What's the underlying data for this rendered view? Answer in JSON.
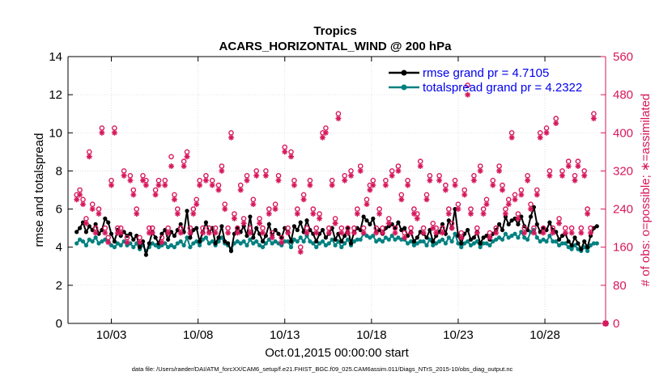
{
  "chart_data": {
    "type": "line",
    "title": "Tropics",
    "subtitle": "ACARS_HORIZONTAL_WIND @ 200 hPa",
    "xlabel": "Oct.01,2015 00:00:00 start",
    "ylabel_left": "rmse and totalspread",
    "ylabel_right": "# of obs: o=possible; ∗=assimilated",
    "footnote": "data file: /Users/raeder/DAI/ATM_forcXX/CAM6_setup/f.e21.FHIST_BGC.f09_025.CAM6assim.011/Diags_NTrS_2015-10/obs_diag_output.nc",
    "xlim_days": [
      0.5,
      31.5
    ],
    "x_ticks": [
      {
        "day": 3,
        "label": "10/03"
      },
      {
        "day": 8,
        "label": "10/08"
      },
      {
        "day": 13,
        "label": "10/13"
      },
      {
        "day": 18,
        "label": "10/18"
      },
      {
        "day": 23,
        "label": "10/23"
      },
      {
        "day": 28,
        "label": "10/28"
      }
    ],
    "ylim_left": [
      0,
      14
    ],
    "left_ticks": [
      "0",
      "2",
      "4",
      "6",
      "8",
      "10",
      "12",
      "14"
    ],
    "ylim_right": [
      0,
      560
    ],
    "right_ticks": [
      "0",
      "80",
      "160",
      "240",
      "320",
      "400",
      "480",
      "560"
    ],
    "legend_placement": "top-right",
    "colors": {
      "rmse": "#000000",
      "spread": "#008080",
      "obs": "#d6175b"
    },
    "series": [
      {
        "name": "rmse grand pr = 4.7105",
        "marker": "dot",
        "values": [
          4.8,
          5.0,
          5.3,
          4.8,
          5.1,
          4.9,
          5.2,
          4.7,
          4.9,
          5.5,
          5.3,
          4.7,
          4.3,
          4.9,
          4.6,
          4.8,
          4.6,
          4.7,
          4.4,
          4.6,
          4.0,
          4.3,
          3.6,
          4.2,
          4.8,
          4.5,
          4.2,
          4.7,
          4.9,
          4.4,
          4.8,
          4.6,
          4.9,
          5.2,
          4.8,
          5.9,
          4.5,
          4.9,
          5.0,
          4.3,
          4.8,
          5.3,
          4.8,
          5.0,
          4.2,
          4.5,
          5.1,
          4.3,
          4.2,
          3.8,
          4.7,
          5.0,
          4.8,
          5.1,
          4.6,
          5.6,
          4.5,
          5.0,
          4.7,
          4.3,
          4.6,
          5.2,
          4.6,
          4.9,
          4.7,
          4.5,
          5.0,
          4.8,
          4.3,
          5.1,
          4.9,
          5.3,
          4.8,
          5.4,
          4.9,
          4.7,
          4.3,
          4.7,
          4.9,
          4.5,
          4.7,
          5.0,
          4.4,
          4.7,
          4.3,
          4.6,
          5.0,
          4.2,
          4.8,
          5.0,
          4.9,
          5.6,
          5.4,
          5.2,
          5.5,
          4.8,
          4.9,
          4.7,
          5.0,
          5.1,
          5.2,
          5.0,
          5.3,
          4.9,
          5.0,
          4.6,
          4.8,
          4.3,
          4.5,
          4.8,
          4.7,
          4.5,
          4.9,
          4.3,
          4.6,
          4.8,
          5.2,
          4.7,
          5.4,
          5.0,
          6.0,
          4.6,
          4.2,
          4.7,
          4.9,
          4.4,
          4.5,
          4.8,
          4.2,
          4.5,
          4.6,
          4.4,
          4.7,
          4.9,
          5.2,
          4.9,
          5.6,
          5.2,
          5.4,
          5.5,
          5.2,
          5.6,
          5.1,
          4.9,
          5.6,
          6.1,
          5.2,
          4.8,
          5.0,
          4.9,
          5.3,
          4.9,
          4.8,
          4.4,
          4.6,
          4.7,
          4.3,
          4.1,
          4.5,
          4.2,
          3.9,
          4.3,
          4.0,
          4.6,
          5.0,
          5.1
        ]
      },
      {
        "name": "totalspread grand pr = 4.2322",
        "marker": "dot",
        "values": [
          4.2,
          4.4,
          4.3,
          4.1,
          4.4,
          4.3,
          4.5,
          4.2,
          4.3,
          4.4,
          4.3,
          4.1,
          4.0,
          4.2,
          4.1,
          4.3,
          4.1,
          4.2,
          4.0,
          4.2,
          3.9,
          4.1,
          3.8,
          4.0,
          4.2,
          4.1,
          4.0,
          4.1,
          4.2,
          4.0,
          4.1,
          4.0,
          4.2,
          4.3,
          4.1,
          4.5,
          4.0,
          4.2,
          4.3,
          4.1,
          4.4,
          4.5,
          4.2,
          4.3,
          4.1,
          4.3,
          4.5,
          4.2,
          4.1,
          3.9,
          4.2,
          4.3,
          4.2,
          4.3,
          4.1,
          4.4,
          4.2,
          4.3,
          4.1,
          4.0,
          4.2,
          4.4,
          4.2,
          4.3,
          4.2,
          4.1,
          4.3,
          4.3,
          4.0,
          4.4,
          4.3,
          4.5,
          4.3,
          4.6,
          4.3,
          4.2,
          4.0,
          4.2,
          4.3,
          4.1,
          4.2,
          4.4,
          4.1,
          4.3,
          4.0,
          4.2,
          4.4,
          4.1,
          4.3,
          4.4,
          4.4,
          4.7,
          4.6,
          4.5,
          4.6,
          4.3,
          4.4,
          4.3,
          4.5,
          4.4,
          4.6,
          4.4,
          4.5,
          4.4,
          4.4,
          4.2,
          4.3,
          4.1,
          4.2,
          4.3,
          4.3,
          4.1,
          4.4,
          4.1,
          4.2,
          4.3,
          4.4,
          4.2,
          4.5,
          4.3,
          4.7,
          4.2,
          4.0,
          4.2,
          4.3,
          4.1,
          4.2,
          4.3,
          4.0,
          4.2,
          4.2,
          4.1,
          4.3,
          4.4,
          4.5,
          4.4,
          4.7,
          4.5,
          4.6,
          4.7,
          4.5,
          4.8,
          4.5,
          4.4,
          4.8,
          4.9,
          4.5,
          4.3,
          4.4,
          4.3,
          4.6,
          4.3,
          4.3,
          4.1,
          4.2,
          4.2,
          4.0,
          3.9,
          4.1,
          3.9,
          3.8,
          4.0,
          3.8,
          4.1,
          4.2,
          4.2
        ]
      },
      {
        "name": "obs possible",
        "marker": "o",
        "values": [
          270,
          280,
          260,
          220,
          360,
          250,
          200,
          240,
          410,
          200,
          180,
          300,
          410,
          200,
          200,
          320,
          180,
          310,
          280,
          240,
          180,
          310,
          300,
          200,
          200,
          280,
          300,
          180,
          300,
          200,
          350,
          270,
          240,
          200,
          340,
          360,
          200,
          240,
          260,
          300,
          200,
          310,
          200,
          300,
          200,
          290,
          330,
          250,
          200,
          400,
          230,
          200,
          290,
          220,
          310,
          200,
          260,
          320,
          220,
          200,
          320,
          240,
          190,
          250,
          310,
          180,
          370,
          200,
          360,
          300,
          240,
          160,
          270,
          200,
          300,
          240,
          200,
          230,
          400,
          410,
          200,
          300,
          220,
          440,
          200,
          310,
          200,
          320,
          200,
          240,
          330,
          200,
          260,
          290,
          300,
          200,
          240,
          200,
          300,
          220,
          320,
          200,
          330,
          270,
          190,
          300,
          200,
          240,
          230,
          340,
          200,
          270,
          310,
          210,
          200,
          310,
          200,
          290,
          240,
          210,
          300,
          250,
          190,
          280,
          500,
          240,
          310,
          200,
          330,
          240,
          260,
          190,
          300,
          200,
          330,
          290,
          240,
          260,
          400,
          270,
          230,
          280,
          200,
          310,
          250,
          200,
          280,
          400,
          200,
          410,
          320,
          200,
          430,
          220,
          320,
          200,
          340,
          200,
          310,
          340,
          200,
          320,
          240,
          200,
          440
        ]
      },
      {
        "name": "obs assimilated",
        "marker": "*",
        "values": [
          260,
          270,
          250,
          210,
          350,
          240,
          190,
          230,
          400,
          190,
          170,
          290,
          400,
          190,
          190,
          310,
          170,
          300,
          270,
          230,
          170,
          300,
          290,
          190,
          190,
          270,
          290,
          170,
          290,
          190,
          330,
          260,
          230,
          190,
          330,
          350,
          190,
          230,
          250,
          290,
          190,
          300,
          190,
          290,
          190,
          280,
          320,
          240,
          190,
          390,
          220,
          190,
          280,
          210,
          300,
          190,
          250,
          310,
          210,
          190,
          310,
          230,
          180,
          240,
          300,
          170,
          360,
          190,
          350,
          290,
          230,
          150,
          260,
          190,
          290,
          230,
          190,
          220,
          390,
          400,
          190,
          290,
          210,
          430,
          190,
          300,
          190,
          310,
          190,
          230,
          320,
          190,
          250,
          280,
          290,
          190,
          230,
          190,
          290,
          210,
          310,
          190,
          320,
          260,
          180,
          290,
          190,
          230,
          220,
          330,
          190,
          260,
          300,
          200,
          190,
          300,
          190,
          280,
          230,
          200,
          290,
          240,
          180,
          270,
          480,
          230,
          300,
          190,
          320,
          230,
          250,
          180,
          290,
          190,
          320,
          280,
          230,
          250,
          390,
          260,
          220,
          270,
          190,
          300,
          240,
          190,
          270,
          390,
          190,
          400,
          310,
          190,
          420,
          210,
          310,
          190,
          330,
          190,
          300,
          330,
          190,
          310,
          230,
          190,
          430
        ]
      }
    ]
  }
}
